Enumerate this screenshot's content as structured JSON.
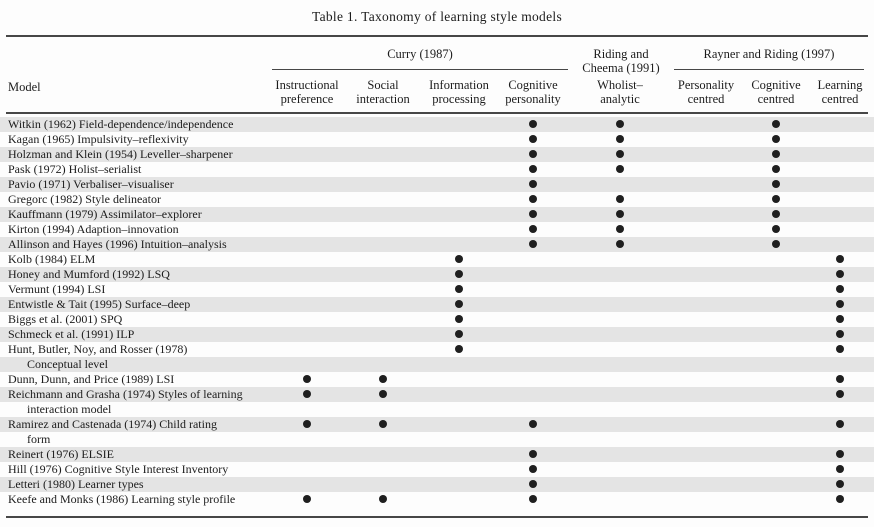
{
  "title": "Table 1. Taxonomy of learning style models",
  "table": {
    "model_header": "Model",
    "groups": [
      {
        "label": "Curry (1987)",
        "lines": [
          "Curry (1987)"
        ]
      },
      {
        "label": "Riding and Cheema (1991)",
        "lines": [
          "Riding and",
          "Cheema (1991)"
        ]
      },
      {
        "label": "Rayner and Riding (1997)",
        "lines": [
          "Rayner and Riding (1997)"
        ]
      }
    ],
    "columns": [
      {
        "group": "Curry (1987)",
        "label": "Instructional preference",
        "lines": [
          "Instructional",
          "preference"
        ]
      },
      {
        "group": "Curry (1987)",
        "label": "Social interaction",
        "lines": [
          "Social",
          "interaction"
        ]
      },
      {
        "group": "Curry (1987)",
        "label": "Information processing",
        "lines": [
          "Information",
          "processing"
        ]
      },
      {
        "group": "Curry (1987)",
        "label": "Cognitive personality",
        "lines": [
          "Cognitive",
          "personality"
        ]
      },
      {
        "group": "Riding and Cheema (1991)",
        "label": "Wholist–analytic",
        "lines": [
          "Wholist–",
          "analytic"
        ]
      },
      {
        "group": "Rayner and Riding (1997)",
        "label": "Personality centred",
        "lines": [
          "Personality",
          "centred"
        ]
      },
      {
        "group": "Rayner and Riding (1997)",
        "label": "Cognitive centred",
        "lines": [
          "Cognitive",
          "centred"
        ]
      },
      {
        "group": "Rayner and Riding (1997)",
        "label": "Learning centred",
        "lines": [
          "Learning",
          "centred"
        ]
      }
    ],
    "rows": [
      {
        "model": "Witkin (1962) Field-dependence/independence",
        "indent": false,
        "shaded": true,
        "dots": [
          0,
          0,
          0,
          1,
          1,
          0,
          1,
          0
        ]
      },
      {
        "model": "Kagan (1965) Impulsivity–reflexivity",
        "indent": false,
        "shaded": false,
        "dots": [
          0,
          0,
          0,
          1,
          1,
          0,
          1,
          0
        ]
      },
      {
        "model": "Holzman and Klein (1954) Leveller–sharpener",
        "indent": false,
        "shaded": true,
        "dots": [
          0,
          0,
          0,
          1,
          1,
          0,
          1,
          0
        ]
      },
      {
        "model": "Pask (1972) Holist–serialist",
        "indent": false,
        "shaded": false,
        "dots": [
          0,
          0,
          0,
          1,
          1,
          0,
          1,
          0
        ]
      },
      {
        "model": "Pavio (1971) Verbaliser–visualiser",
        "indent": false,
        "shaded": true,
        "dots": [
          0,
          0,
          0,
          1,
          0,
          0,
          1,
          0
        ]
      },
      {
        "model": "Gregorc (1982) Style delineator",
        "indent": false,
        "shaded": false,
        "dots": [
          0,
          0,
          0,
          1,
          1,
          0,
          1,
          0
        ]
      },
      {
        "model": "Kauffmann (1979) Assimilator–explorer",
        "indent": false,
        "shaded": true,
        "dots": [
          0,
          0,
          0,
          1,
          1,
          0,
          1,
          0
        ]
      },
      {
        "model": "Kirton (1994) Adaption–innovation",
        "indent": false,
        "shaded": false,
        "dots": [
          0,
          0,
          0,
          1,
          1,
          0,
          1,
          0
        ]
      },
      {
        "model": "Allinson and Hayes (1996) Intuition–analysis",
        "indent": false,
        "shaded": true,
        "dots": [
          0,
          0,
          0,
          1,
          1,
          0,
          1,
          0
        ]
      },
      {
        "model": "Kolb (1984) ELM",
        "indent": false,
        "shaded": false,
        "dots": [
          0,
          0,
          1,
          0,
          0,
          0,
          0,
          1
        ]
      },
      {
        "model": "Honey and Mumford (1992) LSQ",
        "indent": false,
        "shaded": true,
        "dots": [
          0,
          0,
          1,
          0,
          0,
          0,
          0,
          1
        ]
      },
      {
        "model": "Vermunt (1994) LSI",
        "indent": false,
        "shaded": false,
        "dots": [
          0,
          0,
          1,
          0,
          0,
          0,
          0,
          1
        ]
      },
      {
        "model": "Entwistle & Tait (1995) Surface–deep",
        "indent": false,
        "shaded": true,
        "dots": [
          0,
          0,
          1,
          0,
          0,
          0,
          0,
          1
        ]
      },
      {
        "model": "Biggs et al. (2001) SPQ",
        "indent": false,
        "shaded": false,
        "dots": [
          0,
          0,
          1,
          0,
          0,
          0,
          0,
          1
        ]
      },
      {
        "model": "Schmeck et al. (1991) ILP",
        "indent": false,
        "shaded": true,
        "dots": [
          0,
          0,
          1,
          0,
          0,
          0,
          0,
          1
        ]
      },
      {
        "model": "Hunt, Butler, Noy, and Rosser (1978)",
        "indent": false,
        "shaded": false,
        "dots": [
          0,
          0,
          1,
          0,
          0,
          0,
          0,
          1
        ]
      },
      {
        "model": "Conceptual level",
        "indent": true,
        "shaded": true,
        "dots": [
          0,
          0,
          0,
          0,
          0,
          0,
          0,
          0
        ]
      },
      {
        "model": "Dunn, Dunn, and Price (1989) LSI",
        "indent": false,
        "shaded": false,
        "dots": [
          1,
          1,
          0,
          0,
          0,
          0,
          0,
          1
        ]
      },
      {
        "model": "Reichmann and Grasha (1974) Styles of learning",
        "indent": false,
        "shaded": true,
        "dots": [
          1,
          1,
          0,
          0,
          0,
          0,
          0,
          1
        ]
      },
      {
        "model": "interaction model",
        "indent": true,
        "shaded": false,
        "dots": [
          0,
          0,
          0,
          0,
          0,
          0,
          0,
          0
        ]
      },
      {
        "model": "Ramirez and Castenada (1974) Child rating",
        "indent": false,
        "shaded": true,
        "dots": [
          1,
          1,
          0,
          1,
          0,
          0,
          0,
          1
        ]
      },
      {
        "model": "form",
        "indent": true,
        "shaded": false,
        "dots": [
          0,
          0,
          0,
          0,
          0,
          0,
          0,
          0
        ]
      },
      {
        "model": "Reinert (1976) ELSIE",
        "indent": false,
        "shaded": true,
        "dots": [
          0,
          0,
          0,
          1,
          0,
          0,
          0,
          1
        ]
      },
      {
        "model": "Hill (1976) Cognitive Style Interest Inventory",
        "indent": false,
        "shaded": false,
        "dots": [
          0,
          0,
          0,
          1,
          0,
          0,
          0,
          1
        ]
      },
      {
        "model": "Letteri (1980) Learner types",
        "indent": false,
        "shaded": true,
        "dots": [
          0,
          0,
          0,
          1,
          0,
          0,
          0,
          1
        ]
      },
      {
        "model": "Keefe and Monks (1986) Learning style profile",
        "indent": false,
        "shaded": false,
        "dots": [
          1,
          1,
          0,
          1,
          0,
          0,
          0,
          1
        ]
      }
    ]
  },
  "colors": {
    "background": "#fdfdfd",
    "stripe": "#e4e4e4",
    "text": "#1c1c1c",
    "rule": "#474747",
    "dot": "#1f1f1f"
  }
}
